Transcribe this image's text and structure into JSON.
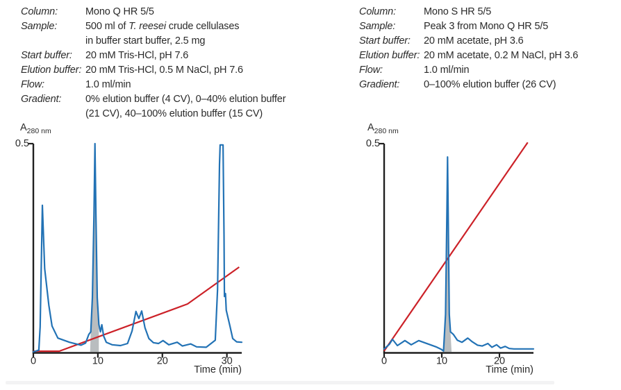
{
  "panels": [
    {
      "conditions": [
        {
          "label": "Column:",
          "lines": [
            [
              {
                "t": "Mono Q HR 5/5"
              }
            ]
          ]
        },
        {
          "label": "Sample:",
          "lines": [
            [
              {
                "t": "500 ml of "
              },
              {
                "t": "T. reesei",
                "i": true
              },
              {
                "t": " crude cellulases"
              }
            ],
            [
              {
                "t": "in buffer start buffer, 2.5 mg"
              }
            ]
          ]
        },
        {
          "label": "Start buffer:",
          "lines": [
            [
              {
                "t": "20 mM Tris-HCl, pH 7.6"
              }
            ]
          ]
        },
        {
          "label": "Elution buffer:",
          "lines": [
            [
              {
                "t": "20 mM Tris-HCl, 0.5 M NaCl, pH 7.6"
              }
            ]
          ]
        },
        {
          "label": "Flow:",
          "lines": [
            [
              {
                "t": "1.0 ml/min"
              }
            ]
          ]
        },
        {
          "label": "Gradient:",
          "lines": [
            [
              {
                "t": "0% elution buffer (4 CV), 0–40% elution buffer"
              }
            ],
            [
              {
                "t": "(21 CV), 40–100% elution buffer (15 CV)"
              }
            ]
          ]
        }
      ]
    },
    {
      "conditions": [
        {
          "label": "Column:",
          "lines": [
            [
              {
                "t": "Mono S HR 5/5"
              }
            ]
          ]
        },
        {
          "label": "Sample:",
          "lines": [
            [
              {
                "t": "Peak 3 from Mono Q HR 5/5"
              }
            ]
          ]
        },
        {
          "label": "Start buffer:",
          "lines": [
            [
              {
                "t": "20 mM acetate, pH 3.6"
              }
            ]
          ]
        },
        {
          "label": "Elution buffer:",
          "lines": [
            [
              {
                "t": "20 mM acetate, 0.2 M NaCl, pH 3.6"
              }
            ]
          ]
        },
        {
          "label": "Flow:",
          "lines": [
            [
              {
                "t": "1.0 ml/min"
              }
            ]
          ]
        },
        {
          "label": "Gradient:",
          "lines": [
            [
              {
                "t": "0–100% elution buffer (26 CV)"
              }
            ]
          ]
        }
      ]
    }
  ],
  "colors": {
    "absorbance": "#2272b5",
    "gradient": "#cc2128",
    "shade": "#b9bdbf",
    "axis": "#1f1f1f"
  },
  "chart_data": [
    {
      "type": "line",
      "ylabel": {
        "main": "A",
        "sub": "280 nm"
      },
      "xlabel": "Time (min)",
      "xlim": [
        0,
        32.3
      ],
      "ylim": [
        0,
        0.5
      ],
      "xticks": [
        0,
        10,
        20,
        30
      ],
      "ytick": {
        "value": 0.5,
        "label": "0.5"
      },
      "grid": false,
      "legend": false,
      "shaded_region": {
        "series": "absorbance",
        "x1": 8.8,
        "x2": 10.15
      },
      "series": [
        {
          "name": "absorbance",
          "color": "absorbance",
          "points": [
            [
              0,
              0
            ],
            [
              0.85,
              0.004
            ],
            [
              1.05,
              0.06
            ],
            [
              1.4,
              0.352
            ],
            [
              1.75,
              0.2
            ],
            [
              2.4,
              0.112
            ],
            [
              2.9,
              0.062
            ],
            [
              3.8,
              0.033
            ],
            [
              5.6,
              0.023
            ],
            [
              7.4,
              0.016
            ],
            [
              8.1,
              0.021
            ],
            [
              8.6,
              0.042
            ],
            [
              8.9,
              0.048
            ],
            [
              9.15,
              0.13
            ],
            [
              9.4,
              0.33
            ],
            [
              9.55,
              0.5
            ],
            [
              9.7,
              0.33
            ],
            [
              9.9,
              0.13
            ],
            [
              10.15,
              0.066
            ],
            [
              10.4,
              0.048
            ],
            [
              10.62,
              0.065
            ],
            [
              10.9,
              0.038
            ],
            [
              11.3,
              0.023
            ],
            [
              12.2,
              0.017
            ],
            [
              13.5,
              0.015
            ],
            [
              14.6,
              0.02
            ],
            [
              15.3,
              0.05
            ],
            [
              15.9,
              0.097
            ],
            [
              16.35,
              0.08
            ],
            [
              16.8,
              0.098
            ],
            [
              17.3,
              0.058
            ],
            [
              17.9,
              0.032
            ],
            [
              18.6,
              0.022
            ],
            [
              19.4,
              0.02
            ],
            [
              20.1,
              0.027
            ],
            [
              21,
              0.017
            ],
            [
              22.3,
              0.023
            ],
            [
              23.1,
              0.014
            ],
            [
              24.4,
              0.019
            ],
            [
              25.3,
              0.012
            ],
            [
              26.8,
              0.011
            ],
            [
              28.2,
              0.028
            ],
            [
              28.55,
              0.15
            ],
            [
              28.85,
              0.45
            ],
            [
              28.95,
              0.497
            ],
            [
              29.4,
              0.497
            ],
            [
              29.55,
              0.28
            ],
            [
              29.62,
              0.133
            ],
            [
              29.78,
              0.14
            ],
            [
              29.9,
              0.1
            ],
            [
              30.5,
              0.06
            ],
            [
              30.9,
              0.032
            ],
            [
              31.5,
              0.024
            ],
            [
              32.3,
              0.023
            ]
          ]
        },
        {
          "name": "gradient",
          "color": "gradient",
          "points": [
            [
              0,
              0.0015
            ],
            [
              4,
              0.0015
            ],
            [
              23.9,
              0.115
            ],
            [
              31.9,
              0.2035
            ]
          ]
        }
      ]
    },
    {
      "type": "line",
      "ylabel": {
        "main": "A",
        "sub": "280 nm"
      },
      "xlabel": "Time (min)",
      "xlim": [
        0,
        25.9
      ],
      "ylim": [
        0,
        0.5
      ],
      "xticks": [
        0,
        10,
        20
      ],
      "ytick": {
        "value": 0.5,
        "label": "0.5"
      },
      "grid": false,
      "legend": false,
      "shaded_region": {
        "series": "absorbance",
        "x1": 10.3,
        "x2": 11.7
      },
      "series": [
        {
          "name": "absorbance",
          "color": "absorbance",
          "points": [
            [
              0,
              0.007
            ],
            [
              0.9,
              0.018
            ],
            [
              1.45,
              0.03
            ],
            [
              2.3,
              0.015
            ],
            [
              3.6,
              0.027
            ],
            [
              4.7,
              0.017
            ],
            [
              6,
              0.027
            ],
            [
              7,
              0.022
            ],
            [
              7.8,
              0.018
            ],
            [
              9,
              0.012
            ],
            [
              9.9,
              0.006
            ],
            [
              10.3,
              0.002
            ],
            [
              10.65,
              0.09
            ],
            [
              10.9,
              0.35
            ],
            [
              11,
              0.468
            ],
            [
              11.1,
              0.35
            ],
            [
              11.3,
              0.09
            ],
            [
              11.5,
              0.048
            ],
            [
              12,
              0.042
            ],
            [
              12.7,
              0.028
            ],
            [
              13.5,
              0.023
            ],
            [
              14.5,
              0.033
            ],
            [
              15.3,
              0.024
            ],
            [
              16.2,
              0.016
            ],
            [
              17,
              0.014
            ],
            [
              18,
              0.02
            ],
            [
              18.7,
              0.011
            ],
            [
              19.5,
              0.017
            ],
            [
              20.2,
              0.009
            ],
            [
              21,
              0.013
            ],
            [
              21.7,
              0.008
            ],
            [
              22.5,
              0.007
            ],
            [
              25.9,
              0.007
            ]
          ]
        },
        {
          "name": "gradient",
          "color": "gradient",
          "points": [
            [
              0,
              0.002
            ],
            [
              24.9,
              0.503
            ]
          ]
        }
      ]
    }
  ]
}
